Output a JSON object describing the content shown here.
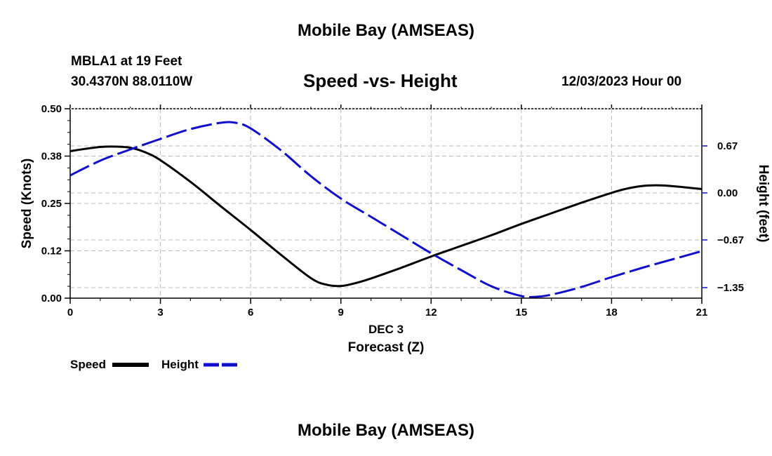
{
  "header": {
    "title": "Mobile Bay (AMSEAS)",
    "station": "MBLA1 at 19 Feet",
    "coords": "30.4370N  88.0110W",
    "subtitle": "Speed -vs- Height",
    "datetime": "12/03/2023 Hour 00"
  },
  "footer": {
    "title": "Mobile Bay (AMSEAS)"
  },
  "legend": {
    "speed_label": "Speed",
    "height_label": "Height"
  },
  "colors": {
    "speed": "#000000",
    "height": "#1010cc",
    "grid": "#bbbbbb"
  },
  "chart_data": {
    "type": "line",
    "title": "Speed -vs- Height",
    "xlabel_top": "DEC 3",
    "xlabel": "Forecast (Z)",
    "ylabel": "Speed (Knots)",
    "y2label": "Height (feet)",
    "xlim": [
      0,
      21
    ],
    "ylim": [
      0,
      0.5
    ],
    "y2lim": [
      -1.5,
      1.2
    ],
    "x_ticks": [
      0,
      3,
      6,
      9,
      12,
      15,
      18,
      21
    ],
    "x_tick_labels": [
      "0",
      "3",
      "6",
      "9",
      "12",
      "15",
      "18",
      "21"
    ],
    "y_ticks": [
      0.0,
      0.125,
      0.25,
      0.375,
      0.5
    ],
    "y_tick_labels": [
      "0.00",
      "0.12",
      "0.25",
      "0.38",
      "0.50"
    ],
    "y2_ticks": [
      0.67,
      0.0,
      -0.67,
      -1.35
    ],
    "y2_tick_labels": [
      "0.67",
      "0.00",
      "−0.67",
      "−1.35"
    ],
    "grid": true,
    "legend_position": "bottom-left",
    "series": [
      {
        "name": "Speed",
        "axis": "left",
        "style": "solid",
        "x": [
          0,
          0.5,
          1,
          1.5,
          2,
          2.5,
          3,
          4,
          5,
          6,
          7,
          8,
          8.5,
          9,
          9.5,
          10,
          11,
          12,
          13,
          14,
          15,
          16,
          17,
          18,
          18.5,
          19,
          19.5,
          20,
          20.5,
          21
        ],
        "values": [
          0.388,
          0.394,
          0.399,
          0.4,
          0.397,
          0.385,
          0.364,
          0.307,
          0.243,
          0.18,
          0.115,
          0.053,
          0.036,
          0.032,
          0.04,
          0.052,
          0.08,
          0.11,
          0.138,
          0.166,
          0.196,
          0.224,
          0.252,
          0.278,
          0.289,
          0.296,
          0.298,
          0.296,
          0.292,
          0.288
        ]
      },
      {
        "name": "Height",
        "axis": "right",
        "style": "dashed",
        "x": [
          0,
          1,
          2,
          3,
          4,
          5,
          5.5,
          6,
          7,
          8,
          9,
          10,
          11,
          12,
          13,
          14,
          15,
          15.5,
          16,
          17,
          18,
          19,
          20,
          21
        ],
        "values": [
          0.25,
          0.46,
          0.62,
          0.77,
          0.91,
          1.0,
          1.0,
          0.92,
          0.61,
          0.24,
          -0.08,
          -0.34,
          -0.6,
          -0.86,
          -1.1,
          -1.33,
          -1.47,
          -1.48,
          -1.45,
          -1.34,
          -1.2,
          -1.07,
          -0.95,
          -0.83
        ]
      }
    ]
  }
}
